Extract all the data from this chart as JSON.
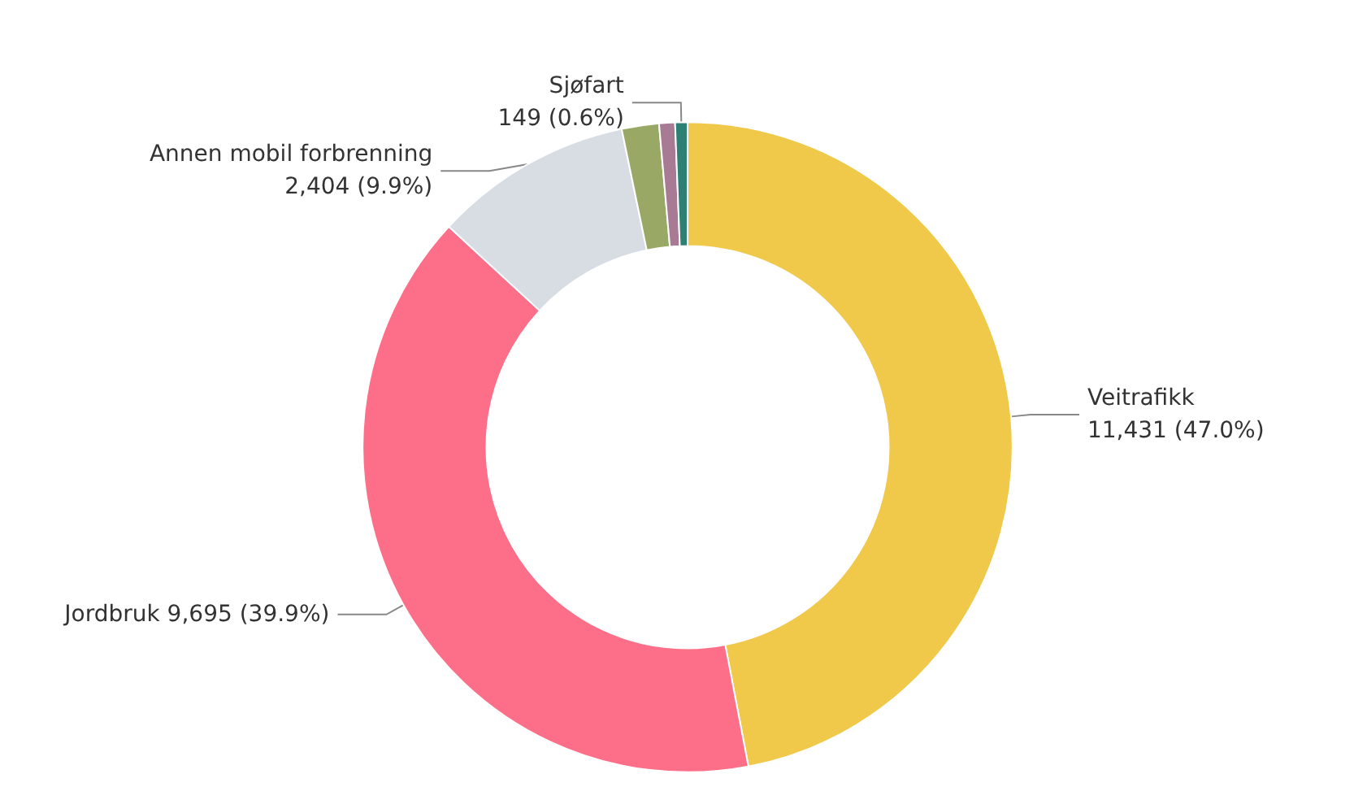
{
  "chart_data": {
    "type": "donut",
    "categories": [
      "Veitrafikk",
      "Jordbruk",
      "Annen mobil forbrenning",
      null,
      null,
      "Sjøfart"
    ],
    "values": [
      11431,
      9695,
      2404,
      450,
      192,
      149
    ],
    "colors": [
      "#f0c84a",
      "#fd6f89",
      "#d8dde4",
      "#9aa866",
      "#a87a94",
      "#2e7f74"
    ],
    "value_labels": [
      "11,431 (47.0%)",
      "9,695 (39.9%)",
      "2,404 (9.9%)",
      null,
      null,
      "149 (0.6%)"
    ],
    "legend": false
  }
}
